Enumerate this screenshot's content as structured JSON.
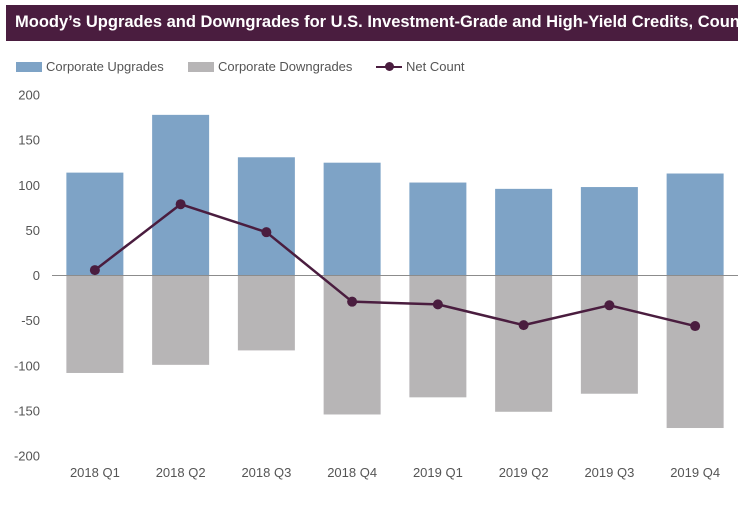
{
  "chart_data": {
    "type": "bar",
    "title": "Moody’s Upgrades and Downgrades for U.S. Investment-Grade and High-Yield Credits, Count",
    "categories": [
      "2018 Q1",
      "2018 Q2",
      "2018 Q3",
      "2018 Q4",
      "2019 Q1",
      "2019 Q2",
      "2019 Q3",
      "2019 Q4"
    ],
    "series": [
      {
        "name": "Corporate Upgrades",
        "kind": "bar",
        "color": "#7ea3c6",
        "values": [
          114,
          178,
          131,
          125,
          103,
          96,
          98,
          113
        ]
      },
      {
        "name": "Corporate Downgrades",
        "kind": "bar",
        "color": "#b7b5b6",
        "values": [
          -108,
          -99,
          -83,
          -154,
          -135,
          -151,
          -131,
          -169
        ]
      },
      {
        "name": "Net Count",
        "kind": "line",
        "color": "#4a1d3f",
        "values": [
          6,
          79,
          48,
          -29,
          -32,
          -55,
          -33,
          -56
        ]
      }
    ],
    "xlabel": "",
    "ylabel": "",
    "ylim": [
      -200,
      200
    ],
    "yticks": [
      200,
      150,
      100,
      50,
      0,
      -50,
      -100,
      -150,
      -200
    ],
    "grid": false,
    "legend_position": "top-left"
  },
  "legend": {
    "upgrades": "Corporate Upgrades",
    "downgrades": "Corporate Downgrades",
    "net": "Net Count"
  }
}
